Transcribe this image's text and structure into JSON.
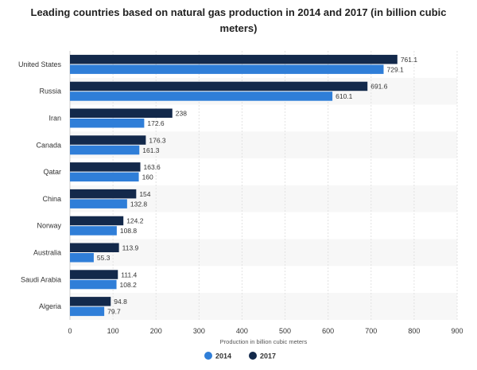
{
  "chart_data": {
    "type": "bar",
    "orientation": "horizontal",
    "title": "Leading countries based on natural gas production in 2014 and 2017 (in billion cubic meters)",
    "xlabel": "Production in billion cubic meters",
    "ylabel": "",
    "categories": [
      "United States",
      "Russia",
      "Iran",
      "Canada",
      "Qatar",
      "China",
      "Norway",
      "Australia",
      "Saudi Arabia",
      "Algeria"
    ],
    "series": [
      {
        "name": "2017",
        "color": "#13294b",
        "values": [
          761.1,
          691.6,
          238,
          176.3,
          163.6,
          154,
          124.2,
          113.9,
          111.4,
          94.8
        ]
      },
      {
        "name": "2014",
        "color": "#2f7ed8",
        "values": [
          729.1,
          610.1,
          172.6,
          161.3,
          160,
          132.8,
          108.8,
          55.3,
          108.2,
          79.7
        ]
      }
    ],
    "xlim": [
      0,
      900
    ],
    "xticks": [
      0,
      100,
      200,
      300,
      400,
      500,
      600,
      700,
      800,
      900
    ],
    "grid": true,
    "legend": {
      "position": "bottom-center",
      "order": [
        "2014",
        "2017"
      ]
    }
  }
}
